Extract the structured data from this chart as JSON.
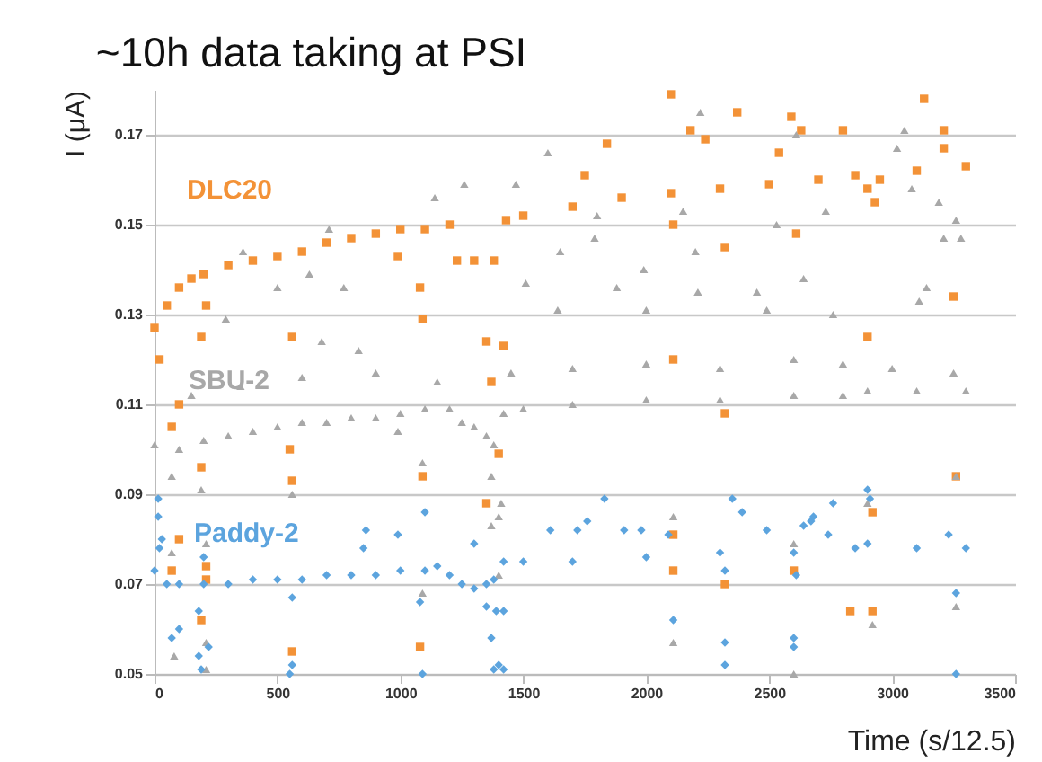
{
  "chart_data": {
    "type": "scatter",
    "title": "~10h data taking at PSI",
    "xlabel": "Time (s/12.5)",
    "ylabel": "I (μA)",
    "xlim": [
      0,
      3500
    ],
    "xticks": [
      0,
      500,
      1000,
      1500,
      2000,
      2500,
      3000,
      3500
    ],
    "ylim": [
      0.05,
      0.18
    ],
    "yticks": [
      0.05,
      0.07,
      0.09,
      0.11,
      0.13,
      0.15,
      0.17
    ],
    "grid": "y",
    "series": [
      {
        "name": "DLC20",
        "color": "#f39237",
        "marker": "square",
        "x": [
          0,
          50,
          100,
          150,
          200,
          300,
          400,
          500,
          600,
          700,
          800,
          900,
          1000,
          1100,
          1200,
          1230,
          1300,
          1380,
          1430,
          1500,
          1700,
          1900,
          2100,
          2300,
          2500,
          2700,
          2850,
          2900,
          2950,
          3100,
          3300,
          2370,
          2590,
          2630,
          2180,
          2240,
          1840,
          2800,
          3210,
          3210,
          2540,
          1750,
          2110,
          2610,
          2320,
          2930,
          3250,
          2900,
          2110,
          2320,
          3130,
          2100,
          20,
          210,
          190,
          560,
          990,
          1080,
          1090,
          1350,
          1420,
          1370,
          100,
          70,
          550,
          560,
          190,
          1090,
          1400,
          1350,
          100,
          70,
          210,
          210,
          190,
          560,
          1080,
          2110,
          2110,
          2320,
          2600,
          2830,
          2920,
          2920,
          3260
        ],
        "values": [
          0.127,
          0.132,
          0.136,
          0.138,
          0.139,
          0.141,
          0.142,
          0.143,
          0.144,
          0.146,
          0.147,
          0.148,
          0.149,
          0.149,
          0.15,
          0.142,
          0.142,
          0.142,
          0.151,
          0.152,
          0.154,
          0.156,
          0.157,
          0.158,
          0.159,
          0.16,
          0.161,
          0.158,
          0.16,
          0.162,
          0.163,
          0.175,
          0.174,
          0.171,
          0.171,
          0.169,
          0.168,
          0.171,
          0.171,
          0.167,
          0.166,
          0.161,
          0.15,
          0.148,
          0.145,
          0.155,
          0.134,
          0.125,
          0.12,
          0.108,
          0.178,
          0.179,
          0.12,
          0.132,
          0.125,
          0.125,
          0.143,
          0.136,
          0.129,
          0.124,
          0.123,
          0.115,
          0.11,
          0.105,
          0.1,
          0.093,
          0.096,
          0.094,
          0.099,
          0.088,
          0.08,
          0.073,
          0.074,
          0.071,
          0.062,
          0.055,
          0.056,
          0.081,
          0.073,
          0.07,
          0.073,
          0.064,
          0.064,
          0.086,
          0.094
        ]
      },
      {
        "name": "SBU-2",
        "color": "#a8a8a8",
        "marker": "triangle",
        "x": [
          0,
          100,
          200,
          300,
          400,
          500,
          600,
          700,
          800,
          900,
          1000,
          1100,
          1200,
          1250,
          1300,
          1350,
          1380,
          1420,
          1500,
          1700,
          2000,
          2300,
          2600,
          2800,
          2900,
          3100,
          3300,
          150,
          350,
          600,
          900,
          1150,
          1450,
          1700,
          2000,
          2300,
          2600,
          2800,
          3000,
          3250,
          710,
          360,
          1140,
          1260,
          1470,
          630,
          770,
          500,
          290,
          680,
          830,
          1600,
          2610,
          2220,
          3050,
          3020,
          3080,
          3190,
          1800,
          2150,
          2530,
          2730,
          1650,
          1790,
          2200,
          1990,
          1510,
          2640,
          1880,
          2210,
          2450,
          3110,
          3140,
          3210,
          3280,
          3260,
          1640,
          2000,
          2490,
          2760,
          70,
          190,
          560,
          1090,
          1370,
          990,
          1410,
          1370,
          1400,
          70,
          210,
          80,
          210,
          210,
          1090,
          1400,
          2110,
          2110,
          2600,
          2600,
          2920,
          2900,
          3260,
          3260
        ],
        "values": [
          0.101,
          0.1,
          0.102,
          0.103,
          0.104,
          0.105,
          0.106,
          0.106,
          0.107,
          0.107,
          0.108,
          0.109,
          0.109,
          0.106,
          0.105,
          0.103,
          0.101,
          0.108,
          0.109,
          0.11,
          0.111,
          0.111,
          0.112,
          0.112,
          0.113,
          0.113,
          0.113,
          0.112,
          0.114,
          0.116,
          0.117,
          0.115,
          0.117,
          0.118,
          0.119,
          0.118,
          0.12,
          0.119,
          0.118,
          0.117,
          0.149,
          0.144,
          0.156,
          0.159,
          0.159,
          0.139,
          0.136,
          0.136,
          0.129,
          0.124,
          0.122,
          0.166,
          0.17,
          0.175,
          0.171,
          0.167,
          0.158,
          0.155,
          0.152,
          0.153,
          0.15,
          0.153,
          0.144,
          0.147,
          0.144,
          0.14,
          0.137,
          0.138,
          0.136,
          0.135,
          0.135,
          0.133,
          0.136,
          0.147,
          0.147,
          0.151,
          0.131,
          0.131,
          0.131,
          0.13,
          0.094,
          0.091,
          0.09,
          0.097,
          0.094,
          0.104,
          0.088,
          0.083,
          0.085,
          0.077,
          0.079,
          0.054,
          0.057,
          0.051,
          0.068,
          0.072,
          0.085,
          0.057,
          0.079,
          0.05,
          0.061,
          0.088,
          0.065,
          0.094
        ]
      },
      {
        "name": "Paddy-2",
        "color": "#5ca4de",
        "marker": "diamond",
        "x": [
          0,
          50,
          100,
          200,
          300,
          400,
          500,
          600,
          700,
          800,
          900,
          1000,
          1100,
          1150,
          1200,
          1250,
          1300,
          1350,
          1380,
          1420,
          1500,
          1700,
          2000,
          2300,
          2600,
          2850,
          2900,
          3100,
          3300,
          15,
          15,
          30,
          20,
          70,
          100,
          180,
          180,
          190,
          220,
          200,
          560,
          560,
          550,
          860,
          850,
          990,
          1100,
          1080,
          1090,
          1300,
          1350,
          1370,
          1390,
          1420,
          1380,
          1400,
          1420,
          1610,
          1720,
          1760,
          1830,
          1910,
          1980,
          2090,
          2110,
          2320,
          2320,
          2320,
          2350,
          2390,
          2490,
          2600,
          2600,
          2610,
          2640,
          2670,
          2680,
          2740,
          2760,
          2900,
          2910,
          3230,
          3260,
          3260
        ],
        "values": [
          0.073,
          0.07,
          0.07,
          0.07,
          0.07,
          0.071,
          0.071,
          0.071,
          0.072,
          0.072,
          0.072,
          0.073,
          0.073,
          0.074,
          0.072,
          0.07,
          0.069,
          0.07,
          0.071,
          0.075,
          0.075,
          0.075,
          0.076,
          0.077,
          0.077,
          0.078,
          0.079,
          0.078,
          0.078,
          0.089,
          0.085,
          0.08,
          0.078,
          0.058,
          0.06,
          0.064,
          0.054,
          0.051,
          0.056,
          0.076,
          0.067,
          0.052,
          0.05,
          0.082,
          0.078,
          0.081,
          0.086,
          0.066,
          0.05,
          0.079,
          0.065,
          0.058,
          0.064,
          0.064,
          0.051,
          0.052,
          0.051,
          0.082,
          0.082,
          0.084,
          0.089,
          0.082,
          0.082,
          0.081,
          0.062,
          0.073,
          0.057,
          0.052,
          0.089,
          0.086,
          0.082,
          0.058,
          0.056,
          0.072,
          0.083,
          0.084,
          0.085,
          0.081,
          0.088,
          0.091,
          0.089,
          0.081,
          0.068,
          0.05
        ]
      }
    ]
  }
}
